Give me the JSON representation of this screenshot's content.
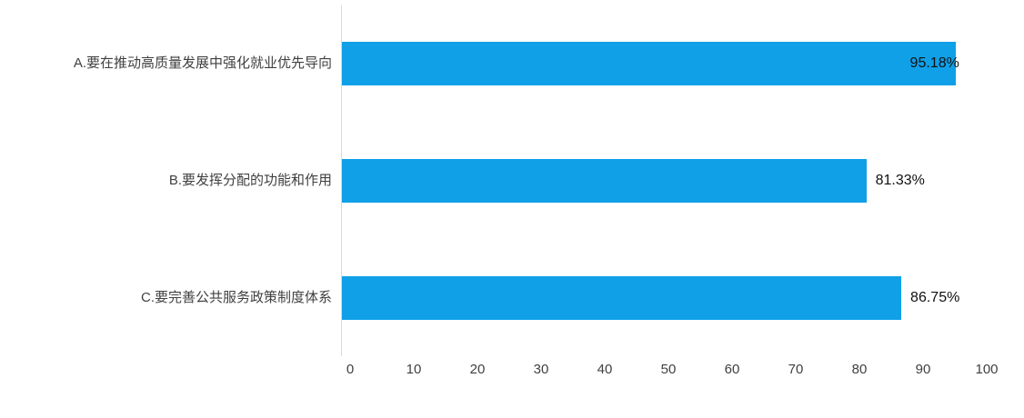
{
  "chart_data": {
    "type": "bar",
    "orientation": "horizontal",
    "title": "",
    "xlabel": "",
    "ylabel": "",
    "xlim": [
      0,
      100
    ],
    "x_ticks": [
      0,
      10,
      20,
      30,
      40,
      50,
      60,
      70,
      80,
      90,
      100
    ],
    "grid": false,
    "legend": false,
    "bar_color": "#0fa0e8",
    "axis_line_color": "#d9d9d9",
    "categories": [
      "A.要在推动高质量发展中强化就业优先导向",
      "B.要发挥分配的功能和作用",
      "C.要完善公共服务政策制度体系"
    ],
    "values": [
      95.18,
      81.33,
      86.75
    ],
    "value_labels": [
      "95.18%",
      "81.33%",
      "86.75%"
    ],
    "label_placement": [
      "inside",
      "outside",
      "outside"
    ]
  }
}
